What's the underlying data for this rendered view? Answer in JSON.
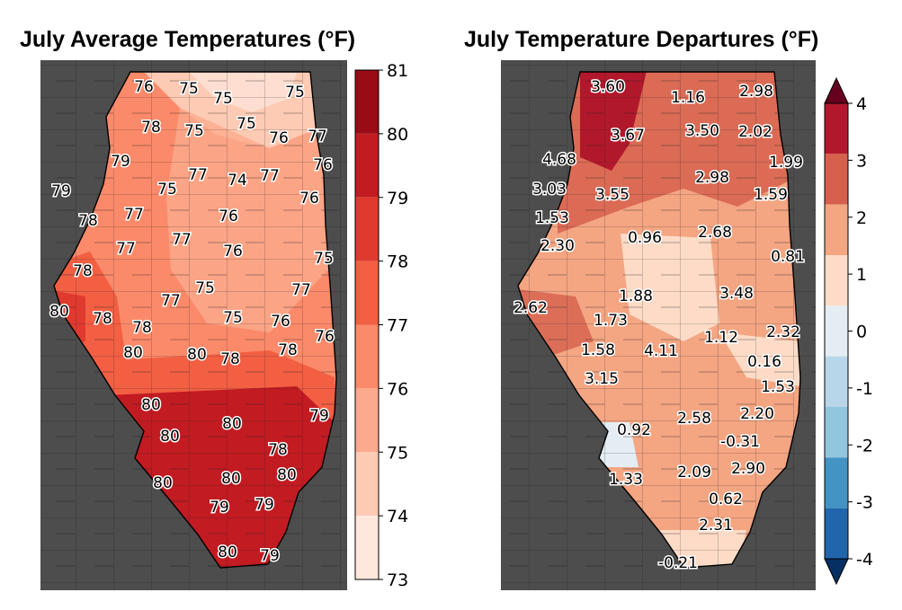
{
  "left_map": {
    "title": "July Average Temperatures (°F)",
    "legend": {
      "ticks": [
        "81",
        "80",
        "79",
        "78",
        "77",
        "76",
        "75",
        "74",
        "73"
      ],
      "colors": [
        "#990c15",
        "#c21b22",
        "#e03a2f",
        "#f25f43",
        "#fb8a6a",
        "#fcaa8d",
        "#fdcab4",
        "#fee7dc"
      ]
    },
    "labels": [
      "76",
      "75",
      "75",
      "75",
      "78",
      "75",
      "75",
      "76",
      "77",
      "79",
      "76",
      "75",
      "77",
      "74",
      "77",
      "79",
      "76",
      "78",
      "77",
      "76",
      "77",
      "77",
      "76",
      "75",
      "78",
      "75",
      "77",
      "80",
      "78",
      "75",
      "76",
      "78",
      "76",
      "77",
      "80",
      "78",
      "78",
      "80",
      "79",
      "80",
      "80",
      "80",
      "78",
      "80",
      "80",
      "80",
      "79",
      "79",
      "80",
      "79"
    ]
  },
  "right_map": {
    "title": "July Temperature Departures (°F)",
    "legend": {
      "ticks": [
        "4",
        "3",
        "2",
        "1",
        "0",
        "-1",
        "-2",
        "-3",
        "-4"
      ],
      "colors": [
        "#b2182b",
        "#d6604d",
        "#f4a582",
        "#fddbc7",
        "#e3edf3",
        "#b8d6e9",
        "#92c5de",
        "#4393c3",
        "#2166ac"
      ],
      "top_arrow": "#67001f",
      "bottom_arrow": "#053061"
    },
    "labels": [
      "3.60",
      "1.16",
      "2.98",
      "3.67",
      "3.50",
      "2.02",
      "4.68",
      "1.99",
      "3.03",
      "2.98",
      "3.55",
      "1.59",
      "1.53",
      "0.96",
      "2.68",
      "2.30",
      "0.81",
      "1.88",
      "3.48",
      "2.62",
      "1.73",
      "1.12",
      "2.32",
      "1.58",
      "4.11",
      "0.16",
      "3.15",
      "1.53",
      "2.58",
      "2.20",
      "0.92",
      "-0.31",
      "2.09",
      "2.90",
      "1.33",
      "0.62",
      "2.31",
      "-0.21"
    ]
  }
}
